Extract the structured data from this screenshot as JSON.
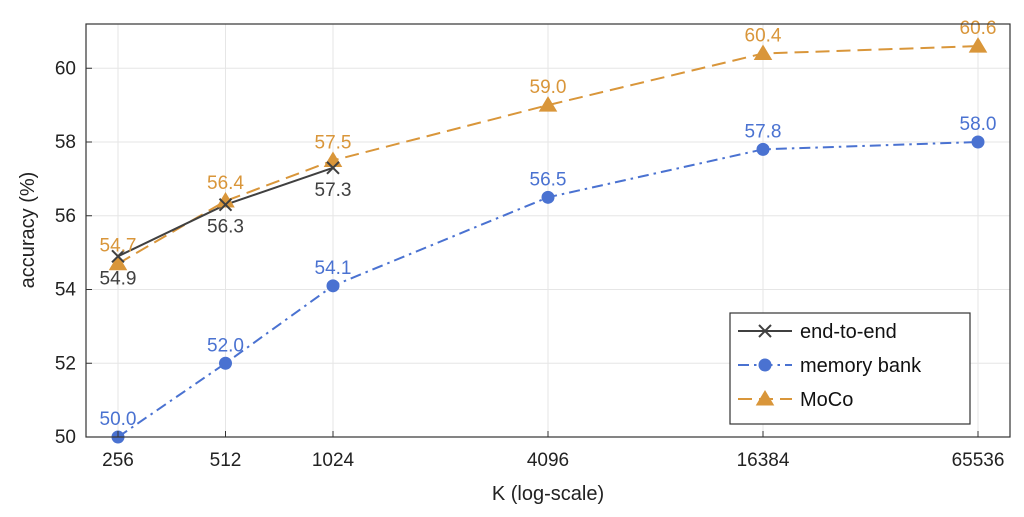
{
  "chart_data": {
    "type": "line",
    "title": "",
    "xlabel": "K (log-scale)",
    "ylabel": "accuracy (%)",
    "x_scale": "log2",
    "categories": [
      "256",
      "512",
      "1024",
      "4096",
      "16384",
      "65536"
    ],
    "x": [
      256,
      512,
      1024,
      4096,
      16384,
      65536
    ],
    "ylim": [
      50,
      61.2
    ],
    "yticks": [
      "50",
      "52",
      "54",
      "56",
      "58",
      "60"
    ],
    "grid": true,
    "legend_position": "bottom-right",
    "series": [
      {
        "name": "end-to-end",
        "key": "end-to-end",
        "color": "#404040",
        "marker": "x",
        "dash": "solid",
        "label_side": "below",
        "x": [
          256,
          512,
          1024
        ],
        "values": [
          54.9,
          56.3,
          57.3
        ],
        "labels": [
          "54.9",
          "56.3",
          "57.3"
        ]
      },
      {
        "name": "memory bank",
        "key": "memory-bank",
        "color": "#4a72d1",
        "marker": "circle",
        "dash": "dashdot",
        "label_side": "above",
        "x": [
          256,
          512,
          1024,
          4096,
          16384,
          65536
        ],
        "values": [
          50.0,
          52.0,
          54.1,
          56.5,
          57.8,
          58.0
        ],
        "labels": [
          "50.0",
          "52.0",
          "54.1",
          "56.5",
          "57.8",
          "58.0"
        ]
      },
      {
        "name": "MoCo",
        "key": "moco",
        "color": "#d9963a",
        "marker": "triangle",
        "dash": "dashed",
        "label_side": "above",
        "x": [
          256,
          512,
          1024,
          4096,
          16384,
          65536
        ],
        "values": [
          54.7,
          56.4,
          57.5,
          59.0,
          60.4,
          60.6
        ],
        "labels": [
          "54.7",
          "56.4",
          "57.5",
          "59.0",
          "60.4",
          "60.6"
        ]
      }
    ]
  }
}
